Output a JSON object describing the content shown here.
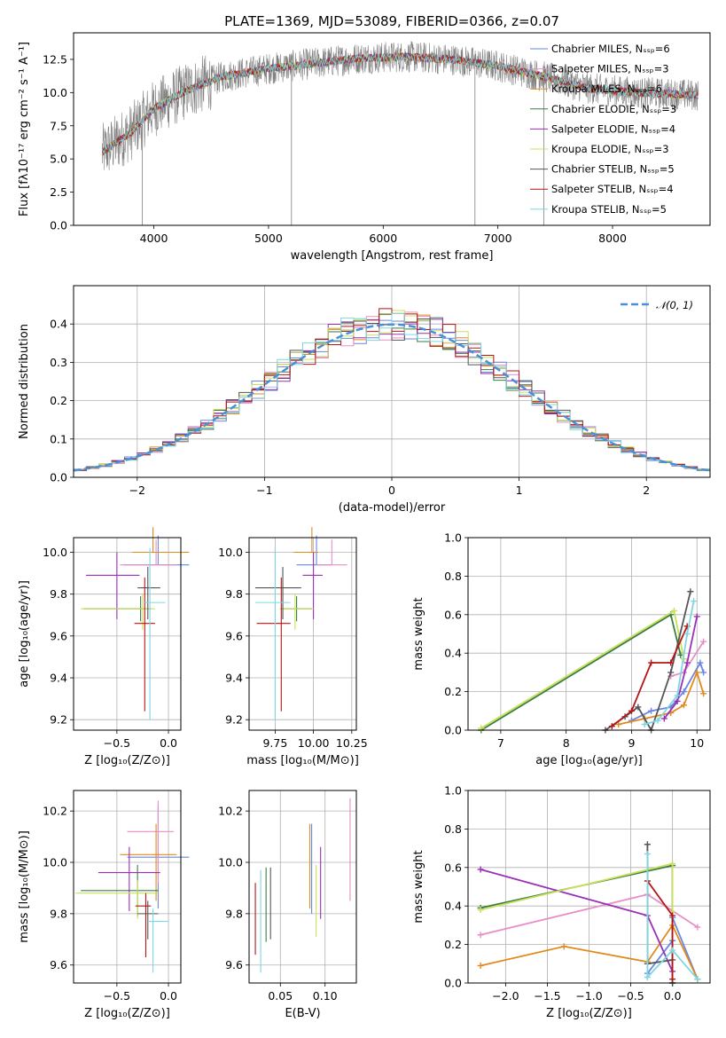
{
  "figure": {
    "title": "PLATE=1369, MJD=53089, FIBERID=0366, z=0.07"
  },
  "legend_entries": [
    {
      "label": "Chabrier MILES, Nₛₛₚ=6",
      "color": "#6a86e0"
    },
    {
      "label": "Salpeter MILES, Nₛₛₚ=3",
      "color": "#e68fc6"
    },
    {
      "label": "Kroupa MILES, Nₛₛₚ=6",
      "color": "#e08a1e"
    },
    {
      "label": "Chabrier ELODIE, Nₛₛₚ=3",
      "color": "#3a7d44"
    },
    {
      "label": "Salpeter ELODIE, Nₛₛₚ=4",
      "color": "#9a2fb8"
    },
    {
      "label": "Kroupa ELODIE, Nₛₛₚ=3",
      "color": "#c8e05a"
    },
    {
      "label": "Chabrier STELIB, Nₛₛₚ=5",
      "color": "#555555"
    },
    {
      "label": "Salpeter STELIB, Nₛₛₚ=4",
      "color": "#b51515"
    },
    {
      "label": "Kroupa STELIB, Nₛₛₚ=5",
      "color": "#7fd6e0"
    }
  ],
  "chart_data": [
    {
      "id": "spectrum",
      "type": "line",
      "xlabel": "wavelength [Angstrom, rest frame]",
      "ylabel": "Flux [fλ10⁻¹⁷ erg cm⁻² s⁻¹ A⁻¹]",
      "xlim": [
        3300,
        8850
      ],
      "ylim": [
        0,
        14.5
      ],
      "xticks": [
        4000,
        5000,
        6000,
        7000,
        8000
      ],
      "yticks": [
        0.0,
        2.5,
        5.0,
        7.5,
        10.0,
        12.5
      ],
      "grid": false,
      "legend": "right",
      "continuum": {
        "x": [
          3550,
          3800,
          4000,
          4300,
          4600,
          5000,
          5400,
          5800,
          6200,
          6600,
          7000,
          7400,
          7800,
          8200,
          8750
        ],
        "y": [
          5.5,
          7.0,
          8.8,
          10.2,
          11.2,
          11.8,
          12.2,
          12.6,
          12.7,
          12.5,
          12.0,
          11.2,
          10.3,
          10.0,
          9.8
        ]
      },
      "spikes": [
        {
          "x": 3900,
          "y": 0
        },
        {
          "x": 5200,
          "y": 0
        },
        {
          "x": 6800,
          "y": 0
        },
        {
          "x": 7400,
          "y": 0
        }
      ]
    },
    {
      "id": "residuals",
      "type": "step",
      "xlabel": "(data-model)/error",
      "ylabel": "Normed distribution",
      "xlim": [
        -2.5,
        2.5
      ],
      "ylim": [
        0,
        0.5
      ],
      "xticks": [
        -2,
        -1,
        0,
        1,
        2
      ],
      "yticks": [
        0.0,
        0.1,
        0.2,
        0.3,
        0.4
      ],
      "grid": true,
      "legend": "top-right",
      "gaussian_label": "𝒩(0, 1)",
      "bin_width": 0.1
    },
    {
      "id": "age_vs_Z",
      "type": "errorbar",
      "xlabel": "Z [log₁₀(Z/Z⊙)]",
      "ylabel": "age  [log₁₀(age/yr)]",
      "xlim": [
        -0.92,
        0.12
      ],
      "ylim": [
        9.15,
        10.07
      ],
      "xticks": [
        -0.5,
        0.0
      ],
      "yticks": [
        9.2,
        9.4,
        9.6,
        9.8,
        10.0
      ],
      "points": [
        {
          "x": -0.1,
          "y": 9.94,
          "xerr": [
            0.33,
            0.3
          ],
          "yerr": [
            0.0,
            0.14
          ],
          "color": "#6a86e0"
        },
        {
          "x": -0.12,
          "y": 9.94,
          "xerr": [
            0.35,
            0.2
          ],
          "yerr": [
            0.0,
            0.12
          ],
          "color": "#e68fc6"
        },
        {
          "x": -0.15,
          "y": 10.0,
          "xerr": [
            0.2,
            0.35
          ],
          "yerr": [
            0.0,
            0.12
          ],
          "color": "#e08a1e"
        },
        {
          "x": -0.27,
          "y": 9.73,
          "xerr": [
            0.55,
            0.1
          ],
          "yerr": [
            0.06,
            0.06
          ],
          "color": "#3a7d44"
        },
        {
          "x": -0.5,
          "y": 9.89,
          "xerr": [
            0.3,
            0.22
          ],
          "yerr": [
            0.21,
            0.11
          ],
          "color": "#9a2fb8"
        },
        {
          "x": -0.25,
          "y": 9.73,
          "xerr": [
            0.6,
            0.12
          ],
          "yerr": [
            0.1,
            0.07
          ],
          "color": "#c8e05a"
        },
        {
          "x": -0.2,
          "y": 9.83,
          "xerr": [
            0.1,
            0.12
          ],
          "yerr": [
            0.15,
            0.1
          ],
          "color": "#555555"
        },
        {
          "x": -0.23,
          "y": 9.66,
          "xerr": [
            0.1,
            0.1
          ],
          "yerr": [
            0.42,
            0.22
          ],
          "color": "#b51515"
        },
        {
          "x": -0.18,
          "y": 9.76,
          "xerr": [
            0.05,
            0.15
          ],
          "yerr": [
            0.56,
            0.26
          ],
          "color": "#7fd6e0"
        }
      ]
    },
    {
      "id": "age_vs_mass",
      "type": "errorbar",
      "xlabel": "mass [log₁₀(M/M⊙)]",
      "ylabel": "",
      "xlim": [
        9.58,
        10.28
      ],
      "ylim": [
        9.15,
        10.07
      ],
      "xticks": [
        9.75,
        10.0,
        10.25
      ],
      "yticks": [
        9.2,
        9.4,
        9.6,
        9.8,
        10.0
      ],
      "points": [
        {
          "x": 10.02,
          "y": 9.94,
          "xerr": [
            0.13,
            0.1
          ],
          "yerr": [
            0.0,
            0.14
          ],
          "color": "#6a86e0"
        },
        {
          "x": 10.12,
          "y": 9.94,
          "xerr": [
            0.1,
            0.1
          ],
          "yerr": [
            0.0,
            0.12
          ],
          "color": "#e68fc6"
        },
        {
          "x": 9.99,
          "y": 10.0,
          "xerr": [
            0.12,
            0.04
          ],
          "yerr": [
            0.0,
            0.12
          ],
          "color": "#e08a1e"
        },
        {
          "x": 9.89,
          "y": 9.73,
          "xerr": [
            0.1,
            0.1
          ],
          "yerr": [
            0.06,
            0.06
          ],
          "color": "#3a7d44"
        },
        {
          "x": 10.0,
          "y": 9.89,
          "xerr": [
            0.07,
            0.06
          ],
          "yerr": [
            0.21,
            0.11
          ],
          "color": "#9a2fb8"
        },
        {
          "x": 9.88,
          "y": 9.73,
          "xerr": [
            0.1,
            0.12
          ],
          "yerr": [
            0.1,
            0.07
          ],
          "color": "#c8e05a"
        },
        {
          "x": 9.8,
          "y": 9.83,
          "xerr": [
            0.18,
            0.12
          ],
          "yerr": [
            0.15,
            0.1
          ],
          "color": "#555555"
        },
        {
          "x": 9.79,
          "y": 9.66,
          "xerr": [
            0.16,
            0.06
          ],
          "yerr": [
            0.42,
            0.22
          ],
          "color": "#b51515"
        },
        {
          "x": 9.75,
          "y": 9.76,
          "xerr": [
            0.13,
            0.1
          ],
          "yerr": [
            0.56,
            0.26
          ],
          "color": "#7fd6e0"
        }
      ]
    },
    {
      "id": "weight_vs_age",
      "type": "line",
      "xlabel": "age  [log₁₀(age/yr)]",
      "ylabel": "mass weight",
      "xlim": [
        6.5,
        10.2
      ],
      "ylim": [
        0,
        1.0
      ],
      "xticks": [
        7,
        8,
        9,
        10
      ],
      "yticks": [
        0.0,
        0.2,
        0.4,
        0.6,
        0.8,
        1.0
      ],
      "series": [
        {
          "color": "#6a86e0",
          "x": [
            9.0,
            9.3,
            9.6,
            9.8,
            10.05,
            10.1
          ],
          "y": [
            0.05,
            0.1,
            0.12,
            0.2,
            0.35,
            0.3
          ]
        },
        {
          "color": "#e68fc6",
          "x": [
            9.6,
            9.8,
            10.1
          ],
          "y": [
            0.28,
            0.3,
            0.46
          ]
        },
        {
          "color": "#e08a1e",
          "x": [
            8.8,
            9.2,
            9.6,
            9.8,
            10.0,
            10.1
          ],
          "y": [
            0.03,
            0.06,
            0.09,
            0.13,
            0.3,
            0.19
          ]
        },
        {
          "color": "#3a7d44",
          "x": [
            6.7,
            9.6,
            9.75
          ],
          "y": [
            0.0,
            0.6,
            0.39
          ]
        },
        {
          "color": "#9a2fb8",
          "x": [
            9.5,
            9.7,
            9.85,
            10.0
          ],
          "y": [
            0.06,
            0.15,
            0.35,
            0.59
          ]
        },
        {
          "color": "#c8e05a",
          "x": [
            6.7,
            9.65,
            9.8
          ],
          "y": [
            0.01,
            0.62,
            0.37
          ]
        },
        {
          "color": "#555555",
          "x": [
            8.6,
            8.9,
            9.1,
            9.3,
            9.6,
            9.9
          ],
          "y": [
            0.0,
            0.07,
            0.12,
            0.0,
            0.3,
            0.72
          ]
        },
        {
          "color": "#b51515",
          "x": [
            8.7,
            9.0,
            9.3,
            9.6,
            9.85
          ],
          "y": [
            0.02,
            0.1,
            0.35,
            0.35,
            0.54
          ]
        },
        {
          "color": "#7fd6e0",
          "x": [
            9.2,
            9.4,
            9.7,
            9.85,
            9.95
          ],
          "y": [
            0.03,
            0.05,
            0.18,
            0.5,
            0.67
          ]
        }
      ]
    },
    {
      "id": "mass_vs_Z",
      "type": "errorbar",
      "xlabel": "Z [log₁₀(Z/Z⊙)]",
      "ylabel": "mass [log₁₀(M/M⊙)]",
      "xlim": [
        -0.92,
        0.12
      ],
      "ylim": [
        9.53,
        10.28
      ],
      "xticks": [
        -0.5,
        0.0
      ],
      "yticks": [
        9.6,
        9.8,
        10.0,
        10.2
      ],
      "points": [
        {
          "x": -0.1,
          "y": 10.02,
          "xerr": [
            0.3,
            0.3
          ],
          "yerr": [
            0.2,
            0.2
          ],
          "color": "#6a86e0"
        },
        {
          "x": -0.1,
          "y": 10.12,
          "xerr": [
            0.3,
            0.15
          ],
          "yerr": [
            0.2,
            0.12
          ],
          "color": "#e68fc6"
        },
        {
          "x": -0.12,
          "y": 10.03,
          "xerr": [
            0.35,
            0.2
          ],
          "yerr": [
            0.18,
            0.12
          ],
          "color": "#e08a1e"
        },
        {
          "x": -0.3,
          "y": 9.89,
          "xerr": [
            0.55,
            0.2
          ],
          "yerr": [
            0.1,
            0.1
          ],
          "color": "#3a7d44"
        },
        {
          "x": -0.38,
          "y": 9.96,
          "xerr": [
            0.3,
            0.3
          ],
          "yerr": [
            0.15,
            0.1
          ],
          "color": "#9a2fb8"
        },
        {
          "x": -0.3,
          "y": 9.88,
          "xerr": [
            0.6,
            0.2
          ],
          "yerr": [
            0.1,
            0.05
          ],
          "color": "#c8e05a"
        },
        {
          "x": -0.2,
          "y": 9.8,
          "xerr": [
            0.1,
            0.1
          ],
          "yerr": [
            0.1,
            0.05
          ],
          "color": "#555555"
        },
        {
          "x": -0.22,
          "y": 9.83,
          "xerr": [
            0.1,
            0.05
          ],
          "yerr": [
            0.2,
            0.05
          ],
          "color": "#b51515"
        },
        {
          "x": -0.15,
          "y": 9.77,
          "xerr": [
            0.05,
            0.15
          ],
          "yerr": [
            0.2,
            0.05
          ],
          "color": "#7fd6e0"
        }
      ]
    },
    {
      "id": "mass_vs_ebv",
      "type": "errorbar",
      "xlabel": "E(B-V)",
      "ylabel": "",
      "xlim": [
        0.015,
        0.135
      ],
      "ylim": [
        9.53,
        10.28
      ],
      "xticks": [
        0.05,
        0.1
      ],
      "yticks": [
        9.6,
        9.8,
        10.0,
        10.2
      ],
      "points": [
        {
          "x": 0.085,
          "y": 10.0,
          "yerr": [
            0.2,
            0.15
          ],
          "color": "#6a86e0"
        },
        {
          "x": 0.128,
          "y": 10.05,
          "yerr": [
            0.2,
            0.2
          ],
          "color": "#e68fc6"
        },
        {
          "x": 0.083,
          "y": 9.98,
          "yerr": [
            0.16,
            0.17
          ],
          "color": "#e08a1e"
        },
        {
          "x": 0.034,
          "y": 9.84,
          "yerr": [
            0.15,
            0.14
          ],
          "color": "#3a7d44"
        },
        {
          "x": 0.095,
          "y": 9.93,
          "yerr": [
            0.15,
            0.13
          ],
          "color": "#9a2fb8"
        },
        {
          "x": 0.09,
          "y": 9.85,
          "yerr": [
            0.14,
            0.14
          ],
          "color": "#c8e05a"
        },
        {
          "x": 0.039,
          "y": 9.84,
          "yerr": [
            0.14,
            0.14
          ],
          "color": "#555555"
        },
        {
          "x": 0.022,
          "y": 9.78,
          "yerr": [
            0.14,
            0.14
          ],
          "color": "#b51515"
        },
        {
          "x": 0.028,
          "y": 9.77,
          "yerr": [
            0.2,
            0.2
          ],
          "color": "#7fd6e0"
        }
      ]
    },
    {
      "id": "weight_vs_Z",
      "type": "line",
      "xlabel": "Z [log₁₀(Z/Z⊙)]",
      "ylabel": "mass weight",
      "xlim": [
        -2.45,
        0.45
      ],
      "ylim": [
        0,
        1.0
      ],
      "xticks": [
        -2.0,
        -1.5,
        -1.0,
        -0.5,
        0.0
      ],
      "yticks": [
        0.0,
        0.2,
        0.4,
        0.6,
        0.8,
        1.0
      ],
      "series": [
        {
          "color": "#6a86e0",
          "x": [
            -0.3,
            0.0,
            0.0,
            0.3
          ],
          "y": [
            0.05,
            0.22,
            0.34,
            0.02
          ]
        },
        {
          "color": "#e68fc6",
          "x": [
            -2.3,
            -0.3,
            0.3
          ],
          "y": [
            0.25,
            0.46,
            0.29
          ]
        },
        {
          "color": "#e08a1e",
          "x": [
            -2.3,
            -1.3,
            -0.3,
            0.0,
            0.3
          ],
          "y": [
            0.09,
            0.19,
            0.11,
            0.3,
            0.02
          ]
        },
        {
          "color": "#3a7d44",
          "x": [
            -2.3,
            0.0,
            0.0
          ],
          "y": [
            0.39,
            0.61,
            0.0
          ]
        },
        {
          "color": "#9a2fb8",
          "x": [
            -2.3,
            -0.3,
            0.0
          ],
          "y": [
            0.59,
            0.35,
            0.06
          ]
        },
        {
          "color": "#c8e05a",
          "x": [
            -2.3,
            0.0,
            0.0
          ],
          "y": [
            0.38,
            0.62,
            0.37
          ]
        },
        {
          "color": "#555555",
          "x": [
            -0.3,
            -0.3,
            0.0,
            0.0
          ],
          "y": [
            0.72,
            0.1,
            0.12,
            0.0
          ]
        },
        {
          "color": "#b51515",
          "x": [
            -0.3,
            0.0,
            0.0
          ],
          "y": [
            0.53,
            0.35,
            0.02
          ]
        },
        {
          "color": "#7fd6e0",
          "x": [
            -0.3,
            -0.3,
            0.0,
            0.3
          ],
          "y": [
            0.67,
            0.03,
            0.17,
            0.02
          ]
        }
      ]
    }
  ]
}
